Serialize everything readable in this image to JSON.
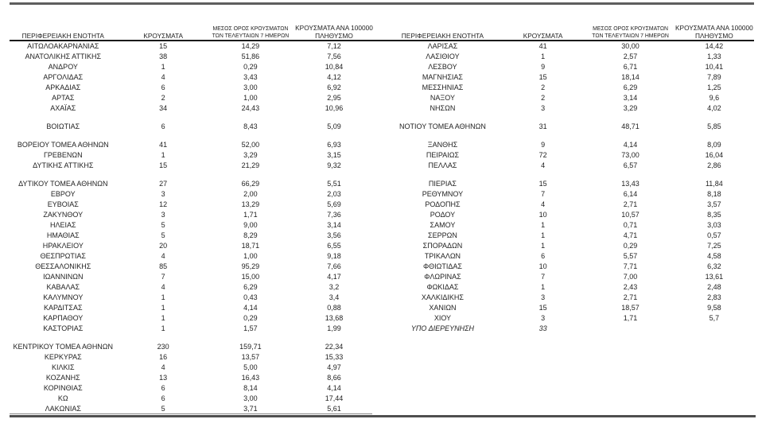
{
  "document": {
    "type": "regional-cases-report-table",
    "language": "el"
  },
  "colors": {
    "text": "#1f1f1f",
    "rule_gray": "#5e5e5e",
    "rule_black": "#1a1a1a",
    "bg": "#ffffff"
  },
  "headers": {
    "region": "ΠΕΡΙΦΕΡΕΙΑΚΗ ΕΝΟΤΗΤΑ",
    "cases": "ΚΡΟΥΣΜΑΤΑ",
    "avg7": "ΜΕΣΟΣ ΟΡΟΣ ΚΡΟΥΣΜΑΤΩΝ\nΤΩΝ ΤΕΛΕΥΤΑΙΩΝ 7 ΗΜΕΡΩΝ",
    "per100k": "ΚΡΟΥΣΜΑΤΑ ΑΝΑ 100000\nΠΛΗΘΥΣΜΟ"
  },
  "tables": [
    {
      "id": "left",
      "rows": [
        {
          "name": "ΑΙΤΩΛΟΑΚΑΡΝΑΝΙΑΣ",
          "cases": "15",
          "avg7": "14,29",
          "per100k": "7,12"
        },
        {
          "name": "ΑΝΑΤΟΛΙΚΗΣ ΑΤΤΙΚΗΣ",
          "cases": "38",
          "avg7": "51,86",
          "per100k": "7,56"
        },
        {
          "name": "ΑΝΔΡΟΥ",
          "cases": "1",
          "avg7": "0,29",
          "per100k": "10,84"
        },
        {
          "name": "ΑΡΓΟΛΙΔΑΣ",
          "cases": "4",
          "avg7": "3,43",
          "per100k": "4,12"
        },
        {
          "name": "ΑΡΚΑΔΙΑΣ",
          "cases": "6",
          "avg7": "3,00",
          "per100k": "6,92"
        },
        {
          "name": "ΑΡΤΑΣ",
          "cases": "2",
          "avg7": "1,00",
          "per100k": "2,95"
        },
        {
          "name": "ΑΧΑΪΑΣ",
          "cases": "34",
          "avg7": "24,43",
          "per100k": "10,96"
        },
        {
          "blank": true
        },
        {
          "name": "ΒΟΙΩΤΙΑΣ",
          "cases": "6",
          "avg7": "8,43",
          "per100k": "5,09"
        },
        {
          "blank": true
        },
        {
          "name": "ΒΟΡΕΙΟΥ ΤΟΜΕΑ ΑΘΗΝΩΝ",
          "cases": "41",
          "avg7": "52,00",
          "per100k": "6,93"
        },
        {
          "name": "ΓΡΕΒΕΝΩΝ",
          "cases": "1",
          "avg7": "3,29",
          "per100k": "3,15"
        },
        {
          "name": "ΔΥΤΙΚΗΣ ΑΤΤΙΚΗΣ",
          "cases": "15",
          "avg7": "21,29",
          "per100k": "9,32"
        },
        {
          "blank": true
        },
        {
          "name": "ΔΥΤΙΚΟΥ ΤΟΜΕΑ ΑΘΗΝΩΝ",
          "cases": "27",
          "avg7": "66,29",
          "per100k": "5,51"
        },
        {
          "name": "ΕΒΡΟΥ",
          "cases": "3",
          "avg7": "2,00",
          "per100k": "2,03"
        },
        {
          "name": "ΕΥΒΟΙΑΣ",
          "cases": "12",
          "avg7": "13,29",
          "per100k": "5,69"
        },
        {
          "name": "ΖΑΚΥΝΘΟΥ",
          "cases": "3",
          "avg7": "1,71",
          "per100k": "7,36"
        },
        {
          "name": "ΗΛΕΙΑΣ",
          "cases": "5",
          "avg7": "9,00",
          "per100k": "3,14"
        },
        {
          "name": "ΗΜΑΘΙΑΣ",
          "cases": "5",
          "avg7": "8,29",
          "per100k": "3,56"
        },
        {
          "name": "ΗΡΑΚΛΕΙΟΥ",
          "cases": "20",
          "avg7": "18,71",
          "per100k": "6,55"
        },
        {
          "name": "ΘΕΣΠΡΩΤΙΑΣ",
          "cases": "4",
          "avg7": "1,00",
          "per100k": "9,18"
        },
        {
          "name": "ΘΕΣΣΑΛΟΝΙΚΗΣ",
          "cases": "85",
          "avg7": "95,29",
          "per100k": "7,66"
        },
        {
          "name": "ΙΩΑΝΝΙΝΩΝ",
          "cases": "7",
          "avg7": "15,00",
          "per100k": "4,17"
        },
        {
          "name": "ΚΑΒΑΛΑΣ",
          "cases": "4",
          "avg7": "6,29",
          "per100k": "3,2"
        },
        {
          "name": "ΚΑΛΥΜΝΟΥ",
          "cases": "1",
          "avg7": "0,43",
          "per100k": "3,4"
        },
        {
          "name": "ΚΑΡΔΙΤΣΑΣ",
          "cases": "1",
          "avg7": "4,14",
          "per100k": "0,88"
        },
        {
          "name": "ΚΑΡΠΑΘΟΥ",
          "cases": "1",
          "avg7": "0,29",
          "per100k": "13,68"
        },
        {
          "name": "ΚΑΣΤΟΡΙΑΣ",
          "cases": "1",
          "avg7": "1,57",
          "per100k": "1,99"
        },
        {
          "blank": true
        },
        {
          "name": "ΚΕΝΤΡΙΚΟΥ ΤΟΜΕΑ ΑΘΗΝΩΝ",
          "cases": "230",
          "avg7": "159,71",
          "per100k": "22,34"
        },
        {
          "name": "ΚΕΡΚΥΡΑΣ",
          "cases": "16",
          "avg7": "13,57",
          "per100k": "15,33"
        },
        {
          "name": "ΚΙΛΚΙΣ",
          "cases": "4",
          "avg7": "5,00",
          "per100k": "4,97"
        },
        {
          "name": "ΚΟΖΑΝΗΣ",
          "cases": "13",
          "avg7": "16,43",
          "per100k": "8,66"
        },
        {
          "name": "ΚΟΡΙΝΘΙΑΣ",
          "cases": "6",
          "avg7": "8,14",
          "per100k": "4,14"
        },
        {
          "name": "ΚΩ",
          "cases": "6",
          "avg7": "3,00",
          "per100k": "17,44"
        },
        {
          "name": "ΛΑΚΩΝΙΑΣ",
          "cases": "5",
          "avg7": "3,71",
          "per100k": "5,61"
        }
      ]
    },
    {
      "id": "right",
      "rows": [
        {
          "name": "ΛΑΡΙΣΑΣ",
          "cases": "41",
          "avg7": "30,00",
          "per100k": "14,42"
        },
        {
          "name": "ΛΑΣΙΘΙΟΥ",
          "cases": "1",
          "avg7": "2,57",
          "per100k": "1,33"
        },
        {
          "name": "ΛΕΣΒΟΥ",
          "cases": "9",
          "avg7": "6,71",
          "per100k": "10,41"
        },
        {
          "name": "ΜΑΓΝΗΣΙΑΣ",
          "cases": "15",
          "avg7": "18,14",
          "per100k": "7,89"
        },
        {
          "name": "ΜΕΣΣΗΝΙΑΣ",
          "cases": "2",
          "avg7": "6,29",
          "per100k": "1,25"
        },
        {
          "name": "ΝΑΞΟΥ",
          "cases": "2",
          "avg7": "3,14",
          "per100k": "9,6"
        },
        {
          "name": "ΝΗΣΩΝ",
          "cases": "3",
          "avg7": "3,29",
          "per100k": "4,02"
        },
        {
          "blank": true
        },
        {
          "name": "ΝΟΤΙΟΥ ΤΟΜΕΑ ΑΘΗΝΩΝ",
          "cases": "31",
          "avg7": "48,71",
          "per100k": "5,85"
        },
        {
          "blank": true
        },
        {
          "name": "ΞΑΝΘΗΣ",
          "cases": "9",
          "avg7": "4,14",
          "per100k": "8,09"
        },
        {
          "name": "ΠΕΙΡΑΙΩΣ",
          "cases": "72",
          "avg7": "73,00",
          "per100k": "16,04"
        },
        {
          "name": "ΠΕΛΛΑΣ",
          "cases": "4",
          "avg7": "6,57",
          "per100k": "2,86"
        },
        {
          "blank": true
        },
        {
          "name": "ΠΙΕΡΙΑΣ",
          "cases": "15",
          "avg7": "13,43",
          "per100k": "11,84"
        },
        {
          "name": "ΡΕΘΥΜΝΟΥ",
          "cases": "7",
          "avg7": "6,14",
          "per100k": "8,18"
        },
        {
          "name": "ΡΟΔΟΠΗΣ",
          "cases": "4",
          "avg7": "2,71",
          "per100k": "3,57"
        },
        {
          "name": "ΡΟΔΟΥ",
          "cases": "10",
          "avg7": "10,57",
          "per100k": "8,35"
        },
        {
          "name": "ΣΑΜΟΥ",
          "cases": "1",
          "avg7": "0,71",
          "per100k": "3,03"
        },
        {
          "name": "ΣΕΡΡΩΝ",
          "cases": "1",
          "avg7": "4,71",
          "per100k": "0,57"
        },
        {
          "name": "ΣΠΟΡΑΔΩΝ",
          "cases": "1",
          "avg7": "0,29",
          "per100k": "7,25"
        },
        {
          "name": "ΤΡΙΚΑΛΩΝ",
          "cases": "6",
          "avg7": "5,57",
          "per100k": "4,58"
        },
        {
          "name": "ΦΘΙΩΤΙΔΑΣ",
          "cases": "10",
          "avg7": "7,71",
          "per100k": "6,32"
        },
        {
          "name": "ΦΛΩΡΙΝΑΣ",
          "cases": "7",
          "avg7": "7,00",
          "per100k": "13,61"
        },
        {
          "name": "ΦΩΚΙΔΑΣ",
          "cases": "1",
          "avg7": "2,43",
          "per100k": "2,48"
        },
        {
          "name": "ΧΑΛΚΙΔΙΚΗΣ",
          "cases": "3",
          "avg7": "2,71",
          "per100k": "2,83"
        },
        {
          "name": "ΧΑΝΙΩΝ",
          "cases": "15",
          "avg7": "18,57",
          "per100k": "9,58"
        },
        {
          "name": "ΧΙΟΥ",
          "cases": "3",
          "avg7": "1,71",
          "per100k": "5,7"
        },
        {
          "name": "ΥΠΟ ΔΙΕΡΕΥΝΗΣΗ",
          "cases": "33",
          "avg7": "",
          "per100k": "",
          "italic": true
        }
      ]
    }
  ]
}
